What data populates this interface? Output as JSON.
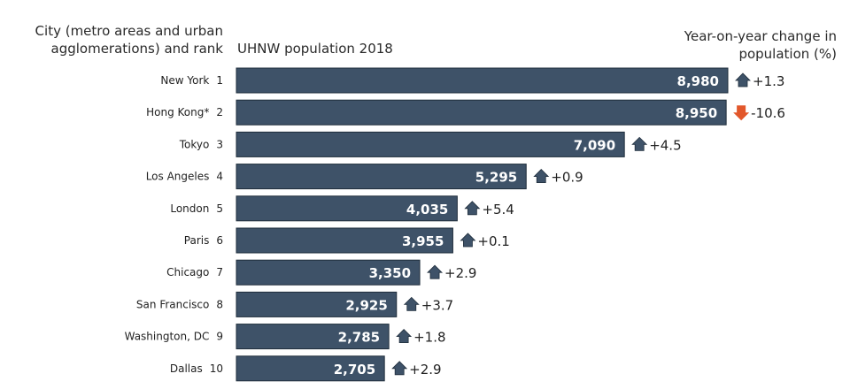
{
  "chart_data": {
    "type": "bar",
    "orientation": "horizontal",
    "headers": {
      "city_line1": "City (metro areas and urban",
      "city_line2": "agglomerations) and rank",
      "population": "UHNW population 2018",
      "change_line1": "Year-on-year change in",
      "change_line2": "population (%)"
    },
    "categories": [
      "New York",
      "Hong Kong*",
      "Tokyo",
      "Los Angeles",
      "London",
      "Paris",
      "Chicago",
      "San Francisco",
      "Washington, DC",
      "Dallas"
    ],
    "ranks": [
      "1",
      "2",
      "3",
      "4",
      "5",
      "6",
      "7",
      "8",
      "9",
      "10"
    ],
    "values": [
      8980,
      8950,
      7090,
      5295,
      4035,
      3955,
      3350,
      2925,
      2785,
      2705
    ],
    "value_labels": [
      "8,980",
      "8,950",
      "7,090",
      "5,295",
      "4,035",
      "3,955",
      "3,350",
      "2,925",
      "2,785",
      "2,705"
    ],
    "change_pct": [
      1.3,
      -10.6,
      4.5,
      0.9,
      5.4,
      0.1,
      2.9,
      3.7,
      1.8,
      2.9
    ],
    "change_labels": [
      "+1.3",
      "-10.6",
      "+4.5",
      "+0.9",
      "+5.4",
      "+0.1",
      "+2.9",
      "+3.7",
      "+1.8",
      "+2.9"
    ],
    "colors": {
      "bar": "#3e5268",
      "bar_border": "#1f2d3b",
      "up_arrow": "#3e5268",
      "down_arrow": "#e2572b"
    },
    "grid": false
  }
}
